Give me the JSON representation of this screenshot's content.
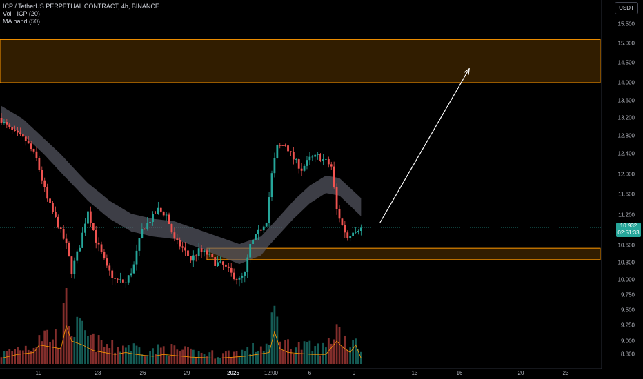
{
  "legend": {
    "title": "ICP / TetherUS PERPETUAL CONTRACT, 4h, BINANCE",
    "volume": "Vol · ICP (20)",
    "ma_band": "MA band (50)"
  },
  "currency": "USDT",
  "last_price": {
    "value": "10.932",
    "countdown": "02:51:33"
  },
  "colors": {
    "up": "#26a69a",
    "down": "#ef5350",
    "band": "#5d606b",
    "zone_fill": "#3a2200",
    "zone_border": "#ff9800",
    "volume_ma": "#ff9800",
    "arrow": "#ffffff"
  },
  "chart_data": {
    "type": "candlestick",
    "symbol": "ICP / TetherUS PERPETUAL CONTRACT",
    "interval": "4h",
    "exchange": "BINANCE",
    "price_ticks": [
      "15.500",
      "15.000",
      "14.500",
      "14.000",
      "13.600",
      "13.200",
      "12.800",
      "12.400",
      "12.000",
      "11.600",
      "11.200",
      "10.600",
      "10.300",
      "10.000",
      "9.750",
      "9.500",
      "9.250",
      "9.000",
      "8.800"
    ],
    "time_ticks": [
      "19",
      "23",
      "26",
      "29",
      "2025",
      "12:00",
      "6",
      "9",
      "13",
      "16",
      "20",
      "23"
    ],
    "price_path": [
      [
        0,
        13.2
      ],
      [
        5,
        12.9
      ],
      [
        10,
        12.7
      ],
      [
        14,
        12.3
      ],
      [
        18,
        11.5
      ],
      [
        22,
        11.0
      ],
      [
        25,
        10.6
      ],
      [
        27,
        10.15
      ],
      [
        30,
        10.6
      ],
      [
        33,
        11.3
      ],
      [
        36,
        10.7
      ],
      [
        40,
        10.2
      ],
      [
        43,
        10.0
      ],
      [
        47,
        9.95
      ],
      [
        50,
        10.25
      ],
      [
        53,
        10.9
      ],
      [
        56,
        11.1
      ],
      [
        59,
        11.3
      ],
      [
        62,
        11.2
      ],
      [
        65,
        10.7
      ],
      [
        68,
        10.55
      ],
      [
        71,
        10.35
      ],
      [
        74,
        10.5
      ],
      [
        77,
        10.45
      ],
      [
        80,
        10.3
      ],
      [
        83,
        10.25
      ],
      [
        86,
        10.1
      ],
      [
        89,
        10.0
      ],
      [
        91,
        10.1
      ],
      [
        93,
        10.6
      ],
      [
        96,
        10.85
      ],
      [
        99,
        11.1
      ],
      [
        101,
        12.0
      ],
      [
        103,
        12.55
      ],
      [
        106,
        12.6
      ],
      [
        109,
        12.3
      ],
      [
        112,
        12.1
      ],
      [
        115,
        12.3
      ],
      [
        118,
        12.35
      ],
      [
        121,
        12.25
      ],
      [
        123,
        12.15
      ],
      [
        125,
        11.3
      ],
      [
        127,
        11.0
      ],
      [
        129,
        10.75
      ],
      [
        131,
        10.9
      ],
      [
        133,
        10.932
      ]
    ],
    "volume_path": [
      [
        0,
        0.15
      ],
      [
        6,
        0.25
      ],
      [
        12,
        0.3
      ],
      [
        14,
        0.5
      ],
      [
        18,
        0.45
      ],
      [
        22,
        0.4
      ],
      [
        24,
        1.0
      ],
      [
        26,
        0.6
      ],
      [
        30,
        0.5
      ],
      [
        34,
        0.35
      ],
      [
        38,
        0.3
      ],
      [
        42,
        0.25
      ],
      [
        46,
        0.3
      ],
      [
        50,
        0.25
      ],
      [
        56,
        0.2
      ],
      [
        60,
        0.25
      ],
      [
        70,
        0.18
      ],
      [
        80,
        0.15
      ],
      [
        90,
        0.2
      ],
      [
        99,
        0.3
      ],
      [
        101,
        0.85
      ],
      [
        103,
        0.4
      ],
      [
        106,
        0.3
      ],
      [
        115,
        0.25
      ],
      [
        120,
        0.25
      ],
      [
        124,
        0.6
      ],
      [
        126,
        0.45
      ],
      [
        129,
        0.3
      ],
      [
        131,
        0.5
      ],
      [
        133,
        0.15
      ]
    ],
    "ma_band_path": [
      [
        0,
        13.3
      ],
      [
        8,
        13.0
      ],
      [
        16,
        12.55
      ],
      [
        24,
        12.1
      ],
      [
        32,
        11.65
      ],
      [
        40,
        11.3
      ],
      [
        48,
        11.05
      ],
      [
        56,
        10.95
      ],
      [
        64,
        10.9
      ],
      [
        72,
        10.75
      ],
      [
        80,
        10.6
      ],
      [
        88,
        10.45
      ],
      [
        96,
        10.6
      ],
      [
        102,
        10.95
      ],
      [
        108,
        11.3
      ],
      [
        114,
        11.6
      ],
      [
        120,
        11.8
      ],
      [
        125,
        11.75
      ],
      [
        129,
        11.55
      ],
      [
        133,
        11.35
      ]
    ],
    "ma_band_width": 0.35,
    "zones": [
      {
        "low": 14.0,
        "high": 15.1,
        "from_index": -5,
        "to_index": 222
      },
      {
        "low": 10.35,
        "high": 10.55,
        "from_index": 76,
        "to_index": 222
      }
    ],
    "projection_arrow": {
      "from": [
        140,
        11.05
      ],
      "to": [
        173,
        14.35
      ]
    },
    "candle_count": 134,
    "ylim_log": true
  }
}
